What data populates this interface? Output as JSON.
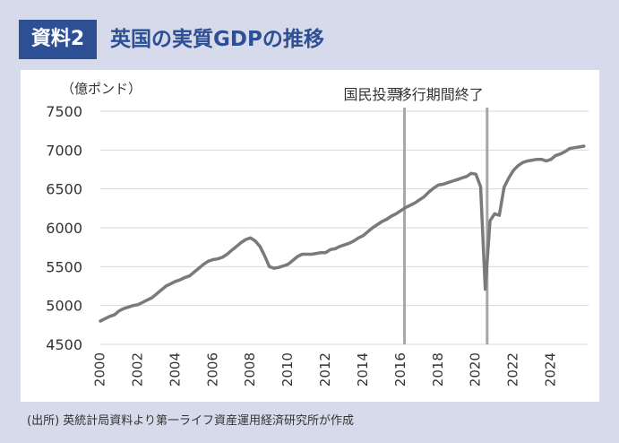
{
  "header": {
    "badge": "資料2",
    "title": "英国の実質GDPの推移"
  },
  "source": "(出所) 英統計局資料より第一ライフ資産運用経済研究所が作成",
  "colors": {
    "background": "#d6daea",
    "badge_bg": "#2d4f94",
    "title": "#2d4f94",
    "line": "#7a7a7a",
    "marker_line": "#a6a6a6",
    "grid": "#d9d9d9"
  },
  "chart_data": {
    "type": "line",
    "ylabel": "（億ポンド）",
    "ylim": [
      4500,
      7500
    ],
    "yticks": [
      4500,
      5000,
      5500,
      6000,
      6500,
      7000,
      7500
    ],
    "xlim": [
      2000,
      2026
    ],
    "xticks": [
      "2000",
      "2002",
      "2004",
      "2006",
      "2008",
      "2010",
      "2012",
      "2014",
      "2016",
      "2018",
      "2020",
      "2022",
      "2024"
    ],
    "grid": "horizontal",
    "annotations": [
      {
        "label": "国民投票",
        "x": 2016.2
      },
      {
        "label": "移行期間終了",
        "x": 2020.6
      }
    ],
    "series": [
      {
        "x": [
          2000.0,
          2000.25,
          2000.5,
          2000.75,
          2001.0,
          2001.25,
          2001.5,
          2001.75,
          2002.0,
          2002.25,
          2002.5,
          2002.75,
          2003.0,
          2003.25,
          2003.5,
          2003.75,
          2004.0,
          2004.25,
          2004.5,
          2004.75,
          2005.0,
          2005.25,
          2005.5,
          2005.75,
          2006.0,
          2006.25,
          2006.5,
          2006.75,
          2007.0,
          2007.25,
          2007.5,
          2007.75,
          2008.0,
          2008.25,
          2008.5,
          2008.75,
          2009.0,
          2009.25,
          2009.5,
          2009.75,
          2010.0,
          2010.25,
          2010.5,
          2010.75,
          2011.0,
          2011.25,
          2011.5,
          2011.75,
          2012.0,
          2012.25,
          2012.5,
          2012.75,
          2013.0,
          2013.25,
          2013.5,
          2013.75,
          2014.0,
          2014.25,
          2014.5,
          2014.75,
          2015.0,
          2015.25,
          2015.5,
          2015.75,
          2016.0,
          2016.25,
          2016.5,
          2016.75,
          2017.0,
          2017.25,
          2017.5,
          2017.75,
          2018.0,
          2018.25,
          2018.5,
          2018.75,
          2019.0,
          2019.25,
          2019.5,
          2019.75,
          2020.0,
          2020.25,
          2020.5,
          2020.75,
          2021.0,
          2021.25,
          2021.5,
          2021.75,
          2022.0,
          2022.25,
          2022.5,
          2022.75,
          2023.0,
          2023.25,
          2023.5,
          2023.75,
          2024.0,
          2024.25,
          2024.5,
          2024.75,
          2025.0,
          2025.25,
          2025.5,
          2025.75
        ],
        "values": [
          4800,
          4830,
          4860,
          4880,
          4930,
          4960,
          4980,
          5000,
          5010,
          5040,
          5070,
          5100,
          5150,
          5200,
          5250,
          5280,
          5310,
          5330,
          5360,
          5380,
          5430,
          5480,
          5530,
          5570,
          5590,
          5600,
          5620,
          5660,
          5710,
          5760,
          5810,
          5850,
          5870,
          5830,
          5760,
          5640,
          5500,
          5480,
          5490,
          5510,
          5530,
          5580,
          5630,
          5660,
          5660,
          5660,
          5670,
          5680,
          5680,
          5720,
          5730,
          5760,
          5780,
          5800,
          5830,
          5870,
          5900,
          5950,
          6000,
          6040,
          6080,
          6110,
          6150,
          6180,
          6220,
          6260,
          6290,
          6320,
          6360,
          6400,
          6460,
          6510,
          6550,
          6560,
          6580,
          6600,
          6620,
          6640,
          6660,
          6700,
          6690,
          6530,
          5210,
          6090,
          6180,
          6160,
          6520,
          6640,
          6740,
          6800,
          6840,
          6860,
          6870,
          6880,
          6880,
          6860,
          6880,
          6930,
          6950,
          6980,
          7020,
          7030,
          7040,
          7050
        ]
      }
    ]
  }
}
